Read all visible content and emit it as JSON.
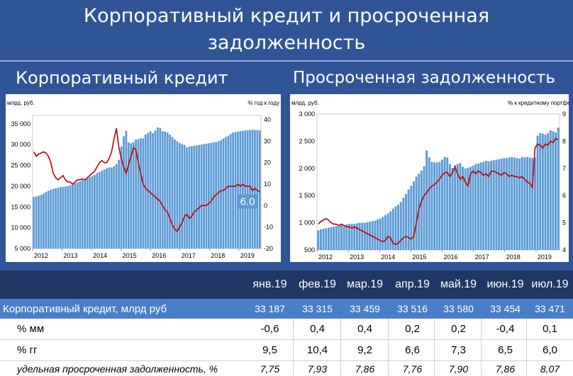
{
  "page": {
    "title_line1": "Корпоративный кредит и просроченная",
    "title_line2": "задолженность",
    "left_title": "Корпоративный кредит",
    "right_title": "Просроченная задолженность"
  },
  "colors": {
    "background": "#2f5597",
    "bars": "#5b9bd5",
    "line": "#c00000",
    "table_header": "#1f3864",
    "table_row": "#4a7ec8",
    "callout": "#5b9bd5"
  },
  "chart_data": [
    {
      "type": "bar+line",
      "title": "Корпоративный кредит",
      "ylabel_left": "млрд. руб.",
      "ylabel_right": "% год к году",
      "x_ticks": [
        "2012",
        "2013",
        "2014",
        "2015",
        "2016",
        "2017",
        "2018",
        "2019"
      ],
      "y_left_ticks": [
        "35 000",
        "30 000",
        "25 000",
        "20 000",
        "15 000",
        "10 000",
        "5 000"
      ],
      "y_right_ticks": [
        "40",
        "30",
        "20",
        "10",
        "0",
        "-10",
        "-20"
      ],
      "ylim_left": [
        5000,
        37000
      ],
      "ylim_right": [
        -20,
        42
      ],
      "x_start": 2012.0,
      "x_end": 2019.75,
      "annotation": "6.0",
      "series": [
        {
          "kind": "bar",
          "values": [
            17400,
            17500,
            17700,
            17900,
            18200,
            18600,
            18900,
            19100,
            19300,
            19500,
            19600,
            19800,
            19800,
            19900,
            20000,
            20200,
            20500,
            20700,
            20900,
            21200,
            21500,
            21700,
            21900,
            22200,
            22400,
            22700,
            23100,
            23400,
            23700,
            24000,
            24300,
            24500,
            24500,
            24800,
            25300,
            26300,
            29500,
            32000,
            33300,
            30500,
            30300,
            30600,
            31200,
            31300,
            31500,
            31500,
            32400,
            32800,
            33200,
            32700,
            33400,
            34100,
            34000,
            33200,
            33100,
            32900,
            32400,
            31800,
            31200,
            30800,
            30400,
            30100,
            29900,
            29300,
            29500,
            29600,
            29700,
            29800,
            29900,
            30000,
            30100,
            30200,
            30300,
            30400,
            30500,
            30600,
            30800,
            31000,
            31400,
            31800,
            32100,
            32500,
            32900,
            33000,
            33100,
            33200,
            33300,
            33400,
            33400,
            33500,
            33600,
            33500,
            33500,
            33450
          ]
        },
        {
          "kind": "line",
          "values": [
            25,
            23,
            24,
            24.5,
            25,
            24.5,
            23,
            20,
            15,
            13,
            12,
            13,
            14,
            12,
            11,
            11,
            10,
            11,
            12,
            12,
            12.5,
            12,
            13,
            14,
            15,
            16,
            18,
            20,
            21,
            20,
            20,
            22,
            25,
            31,
            36,
            27,
            22,
            18,
            15,
            19,
            23,
            27,
            26,
            20,
            15,
            10,
            8,
            7,
            6,
            5,
            4,
            3,
            2,
            0,
            -2,
            -3,
            -6,
            -9,
            -11,
            -12,
            -10,
            -8,
            -5,
            -4,
            -6,
            -5,
            -3,
            -2,
            -1,
            0,
            0,
            0,
            1,
            2,
            4,
            5,
            6,
            7,
            7,
            8,
            9,
            9,
            9,
            9,
            10,
            9,
            10,
            9,
            9,
            9,
            7,
            8,
            7,
            6.5
          ]
        }
      ]
    },
    {
      "type": "bar+line",
      "title": "Просроченная задолженность",
      "ylabel_left": "млрд. руб.",
      "ylabel_right": "% к кредитному портфелю",
      "x_ticks": [
        "2012",
        "2013",
        "2014",
        "2015",
        "2016",
        "2017",
        "2018",
        "2019"
      ],
      "y_left_ticks": [
        "3 000",
        "2 500",
        "2 000",
        "1 500",
        "1 000",
        "500"
      ],
      "y_right_ticks": [
        "9",
        "8",
        "7",
        "6",
        "5",
        "4"
      ],
      "ylim_left": [
        500,
        3000
      ],
      "ylim_right": [
        4,
        9
      ],
      "x_start": 2012.0,
      "x_end": 2019.75,
      "series": [
        {
          "kind": "bar",
          "values": [
            860,
            880,
            890,
            900,
            910,
            920,
            930,
            940,
            950,
            960,
            960,
            970,
            980,
            980,
            980,
            990,
            1000,
            1000,
            1000,
            1010,
            1020,
            1030,
            1040,
            1060,
            1080,
            1110,
            1140,
            1170,
            1210,
            1260,
            1300,
            1330,
            1380,
            1460,
            1530,
            1610,
            1680,
            1760,
            1850,
            1900,
            1960,
            2040,
            2330,
            2200,
            2120,
            2110,
            2110,
            2120,
            2160,
            2210,
            2200,
            2080,
            2010,
            2060,
            2080,
            2100,
            2030,
            2000,
            2010,
            2030,
            2050,
            2080,
            2090,
            2110,
            2120,
            2140,
            2130,
            2140,
            2150,
            2160,
            2170,
            2180,
            2190,
            2190,
            2200,
            2210,
            2200,
            2190,
            2180,
            2210,
            2200,
            2210,
            2200,
            2190,
            2200,
            2600,
            2650,
            2640,
            2620,
            2650,
            2700,
            2680,
            2660,
            2750
          ]
        },
        {
          "kind": "line",
          "values": [
            4.95,
            5.05,
            5.1,
            5.15,
            5.1,
            5.0,
            4.95,
            4.95,
            4.9,
            4.95,
            4.9,
            4.85,
            4.85,
            4.8,
            4.85,
            4.8,
            4.75,
            4.7,
            4.65,
            4.6,
            4.55,
            4.5,
            4.45,
            4.4,
            4.35,
            4.3,
            4.35,
            4.5,
            4.45,
            4.25,
            4.2,
            4.25,
            4.35,
            4.45,
            4.5,
            4.45,
            4.4,
            4.5,
            5.0,
            5.5,
            5.8,
            6.0,
            6.1,
            6.25,
            6.35,
            6.4,
            6.5,
            6.6,
            6.75,
            6.85,
            6.85,
            6.7,
            6.85,
            7.05,
            6.8,
            6.6,
            6.7,
            6.5,
            6.35,
            6.8,
            6.9,
            6.8,
            6.9,
            6.85,
            6.75,
            6.8,
            6.7,
            6.9,
            6.9,
            6.85,
            6.8,
            6.75,
            6.85,
            6.8,
            6.7,
            6.75,
            6.7,
            6.7,
            6.65,
            6.7,
            6.6,
            6.5,
            6.45,
            6.3,
            7.75,
            7.9,
            7.85,
            7.75,
            7.9,
            7.85,
            8.0,
            7.95,
            8.1,
            8.05
          ]
        }
      ]
    }
  ],
  "table": {
    "months": [
      "янв.19",
      "фев.19",
      "мар.19",
      "апр.19",
      "май.19",
      "июн.19",
      "июл.19"
    ],
    "rows": [
      {
        "label": "Корпоративный кредит, млрд руб",
        "values": [
          "33 187",
          "33 315",
          "33 459",
          "33 516",
          "33 580",
          "33 454",
          "33 471"
        ]
      },
      {
        "label": "% мм",
        "values": [
          "-0,6",
          "0,4",
          "0,4",
          "0,2",
          "0,2",
          "-0,4",
          "0,1"
        ]
      },
      {
        "label": "% гг",
        "values": [
          "9,5",
          "10,4",
          "9,2",
          "6,6",
          "7,3",
          "6,5",
          "6,0"
        ]
      },
      {
        "label": "удельная просроченная задолженность, %",
        "values": [
          "7,75",
          "7,93",
          "7,86",
          "7,76",
          "7,90",
          "7,86",
          "8,07"
        ]
      }
    ]
  }
}
